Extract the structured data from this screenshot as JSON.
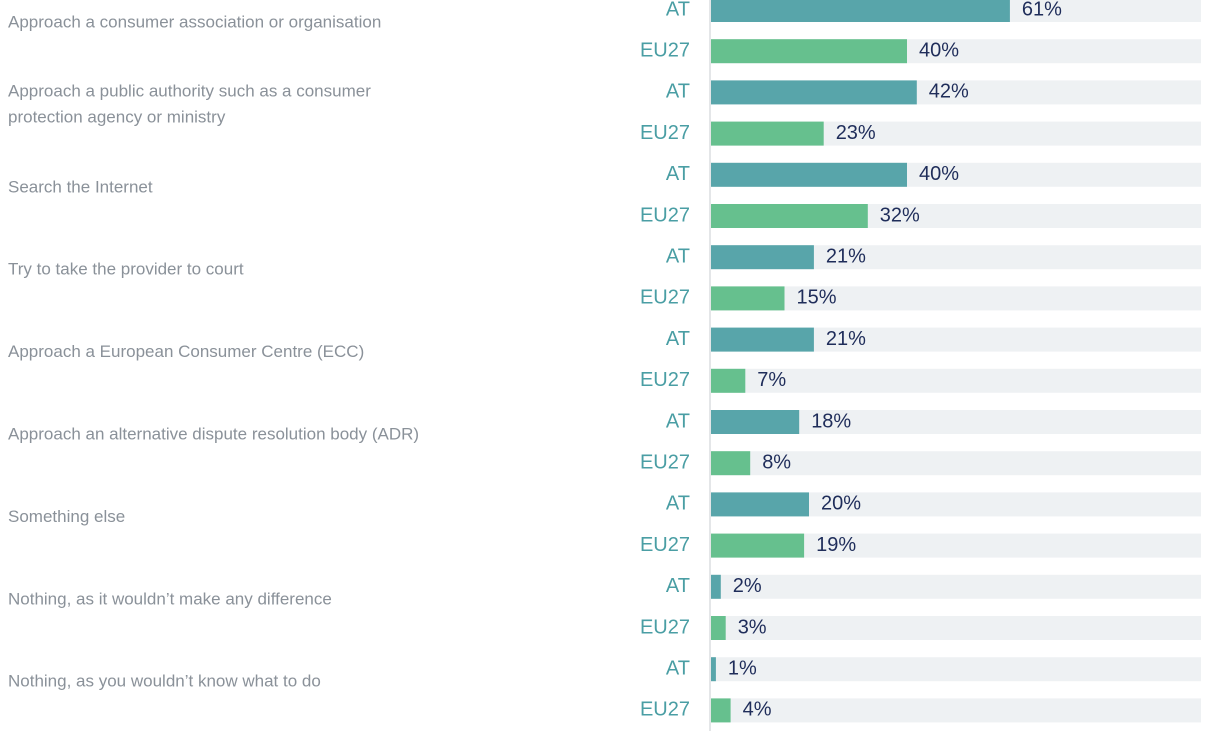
{
  "chart_data": {
    "type": "bar",
    "categories": [
      "Approach a consumer association or organisation",
      "Approach a public authority such as a consumer\nprotection agency or ministry",
      "Search the Internet",
      "Try to take the provider to court",
      "Approach a European Consumer Centre (ECC)",
      "Approach an alternative dispute resolution body (ADR)",
      "Something else",
      "Nothing, as it wouldn’t make any difference",
      "Nothing, as you wouldn’t know what to do"
    ],
    "series": [
      {
        "name": "AT",
        "color": "#58a5aa",
        "values": [
          61,
          42,
          40,
          21,
          21,
          18,
          20,
          2,
          1
        ],
        "value_labels": [
          "61%",
          "42%",
          "40%",
          "21%",
          "21%",
          "18%",
          "20%",
          "2%",
          "1%"
        ]
      },
      {
        "name": "EU27",
        "color": "#66c08e",
        "values": [
          40,
          23,
          32,
          15,
          7,
          8,
          19,
          3,
          4
        ],
        "value_labels": [
          "40%",
          "23%",
          "32%",
          "15%",
          "7%",
          "8%",
          "19%",
          "3%",
          "4%"
        ]
      }
    ],
    "xlim": [
      0,
      100
    ]
  }
}
